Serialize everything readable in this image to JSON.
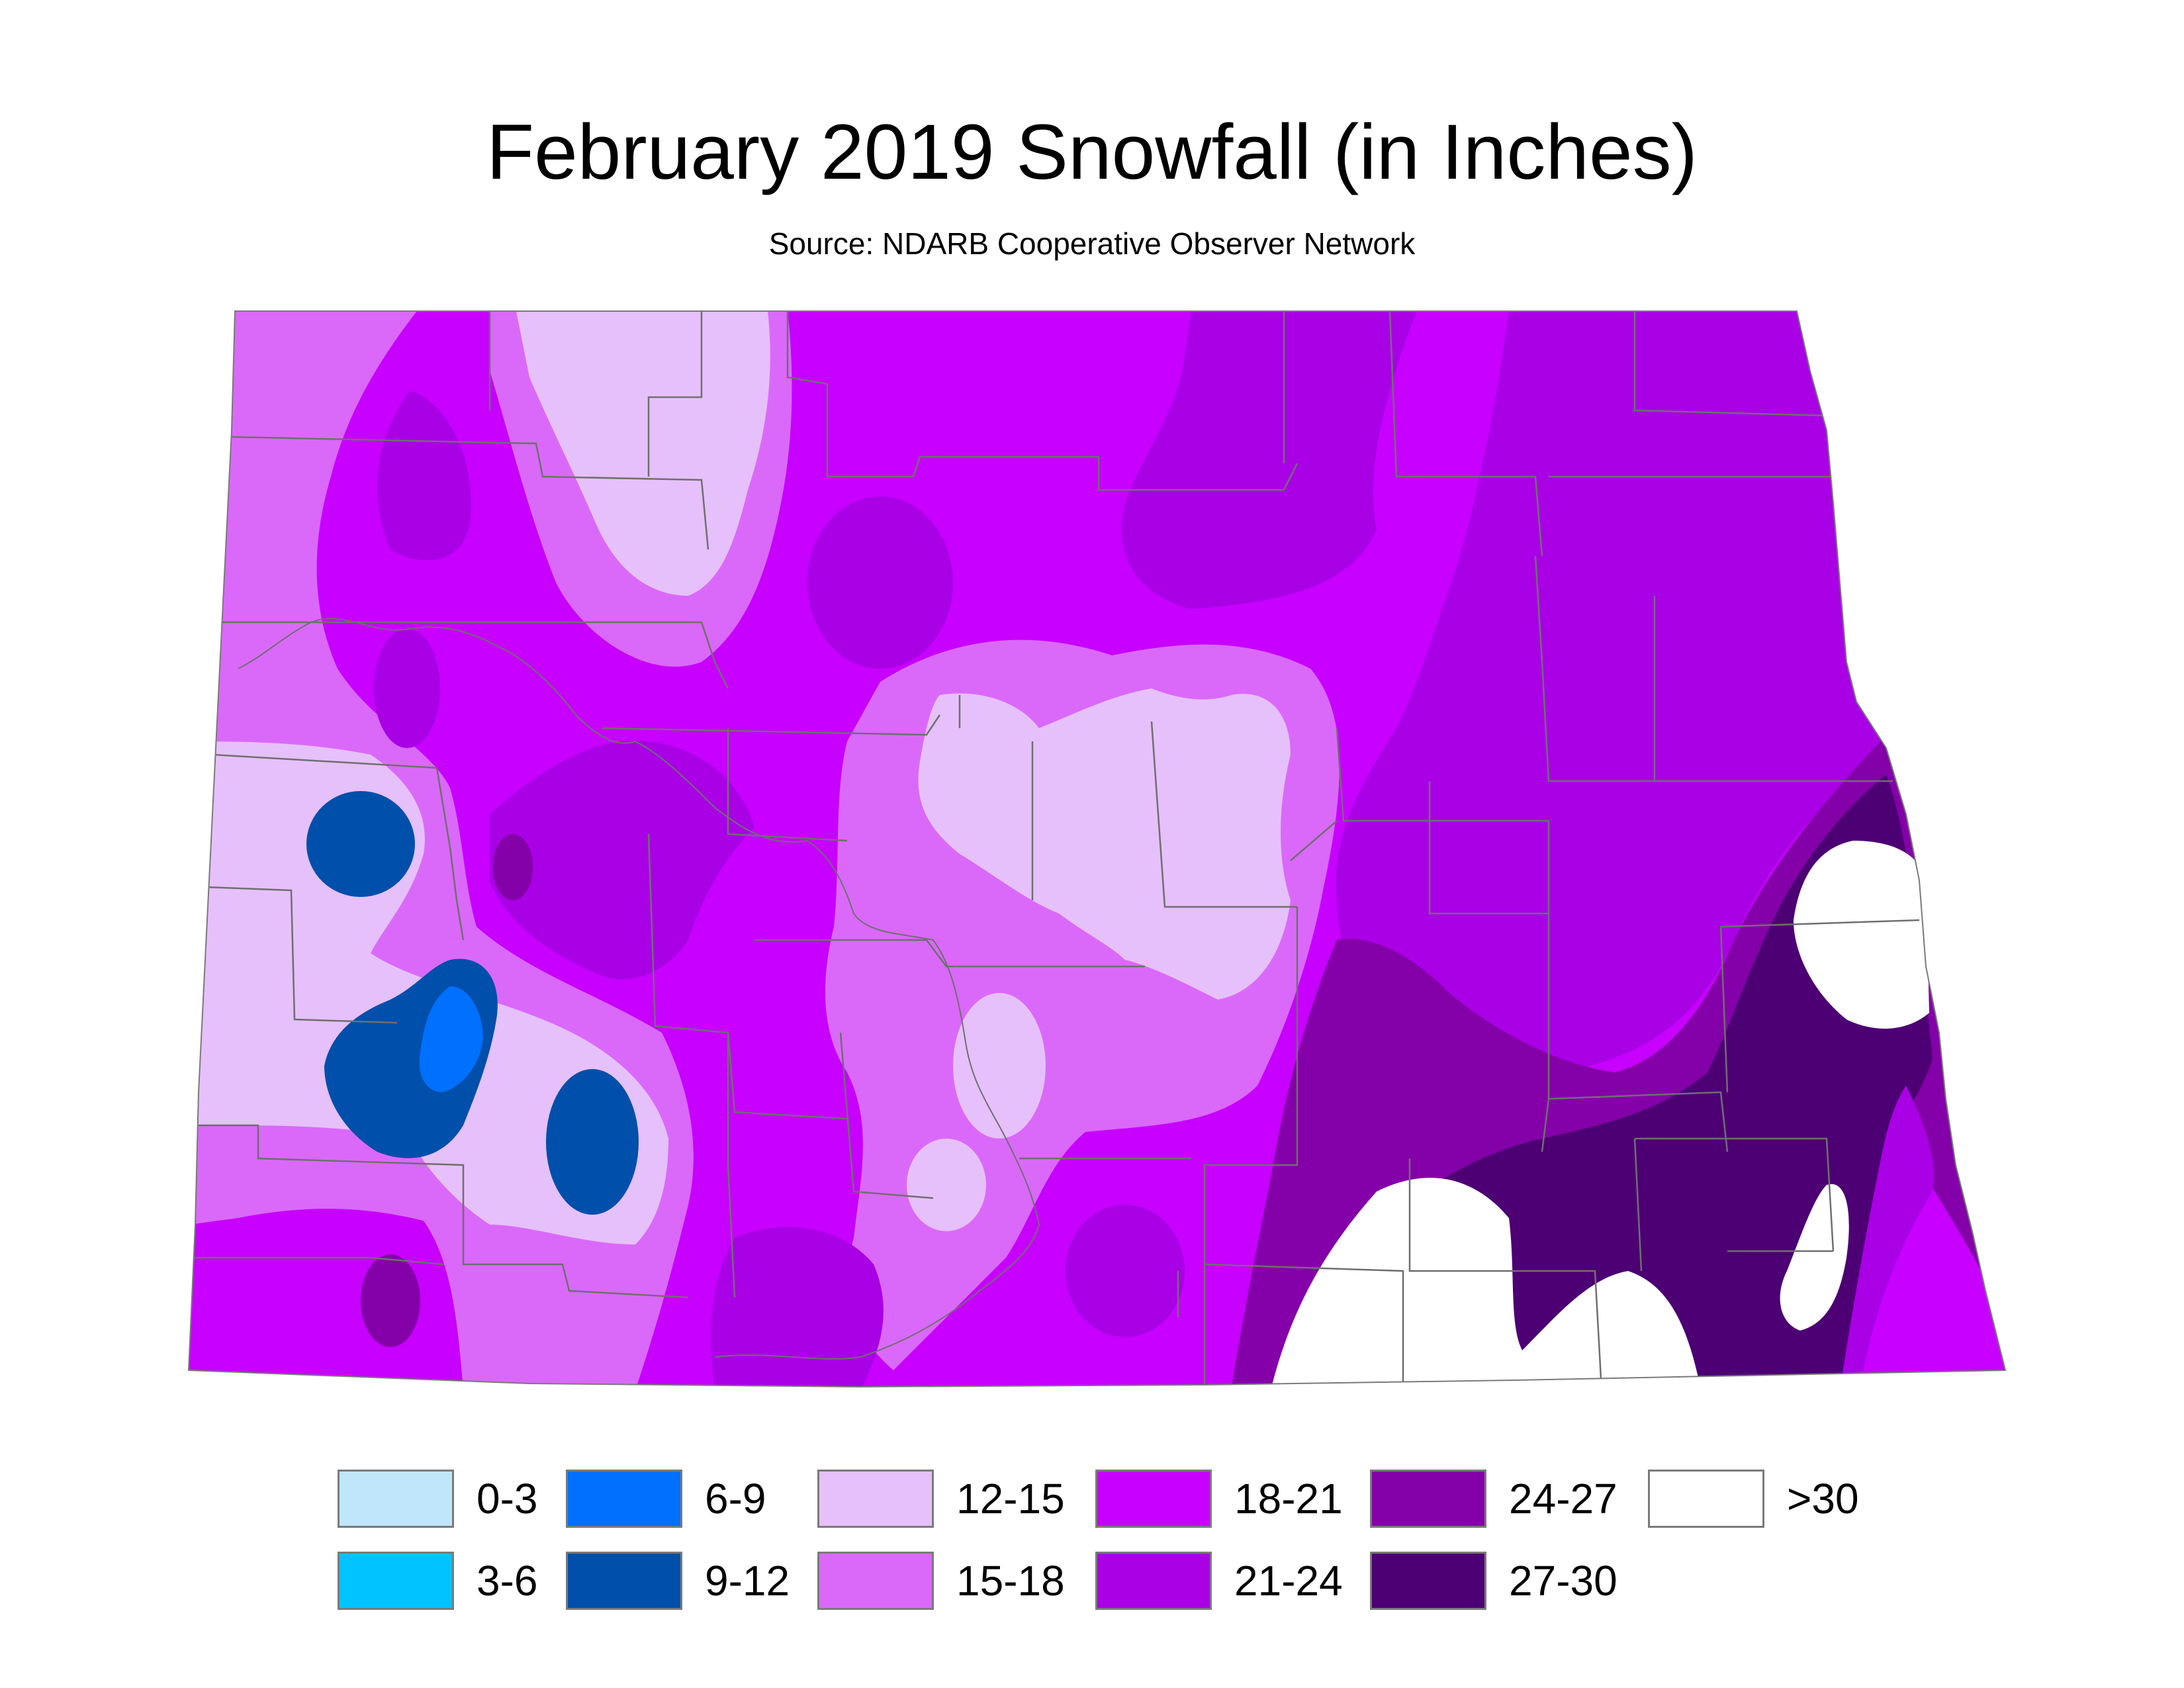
{
  "title": "February 2019 Snowfall (in Inches)",
  "subtitle": "Source: NDARB Cooperative Observer Network",
  "legend": [
    {
      "label": "0-3",
      "color": "#bfe6fb"
    },
    {
      "label": "3-6",
      "color": "#00c3ff"
    },
    {
      "label": "6-9",
      "color": "#0070ff"
    },
    {
      "label": "9-12",
      "color": "#004fab"
    },
    {
      "label": "12-15",
      "color": "#e6c0fb"
    },
    {
      "label": "15-18",
      "color": "#da69fa"
    },
    {
      "label": "18-21",
      "color": "#c700ff"
    },
    {
      "label": "21-24",
      "color": "#a900e6"
    },
    {
      "label": "24-27",
      "color": "#8400a8"
    },
    {
      "label": "27-30",
      "color": "#4c0073"
    },
    {
      "label": ">30",
      "color": "#ffffff"
    }
  ]
}
